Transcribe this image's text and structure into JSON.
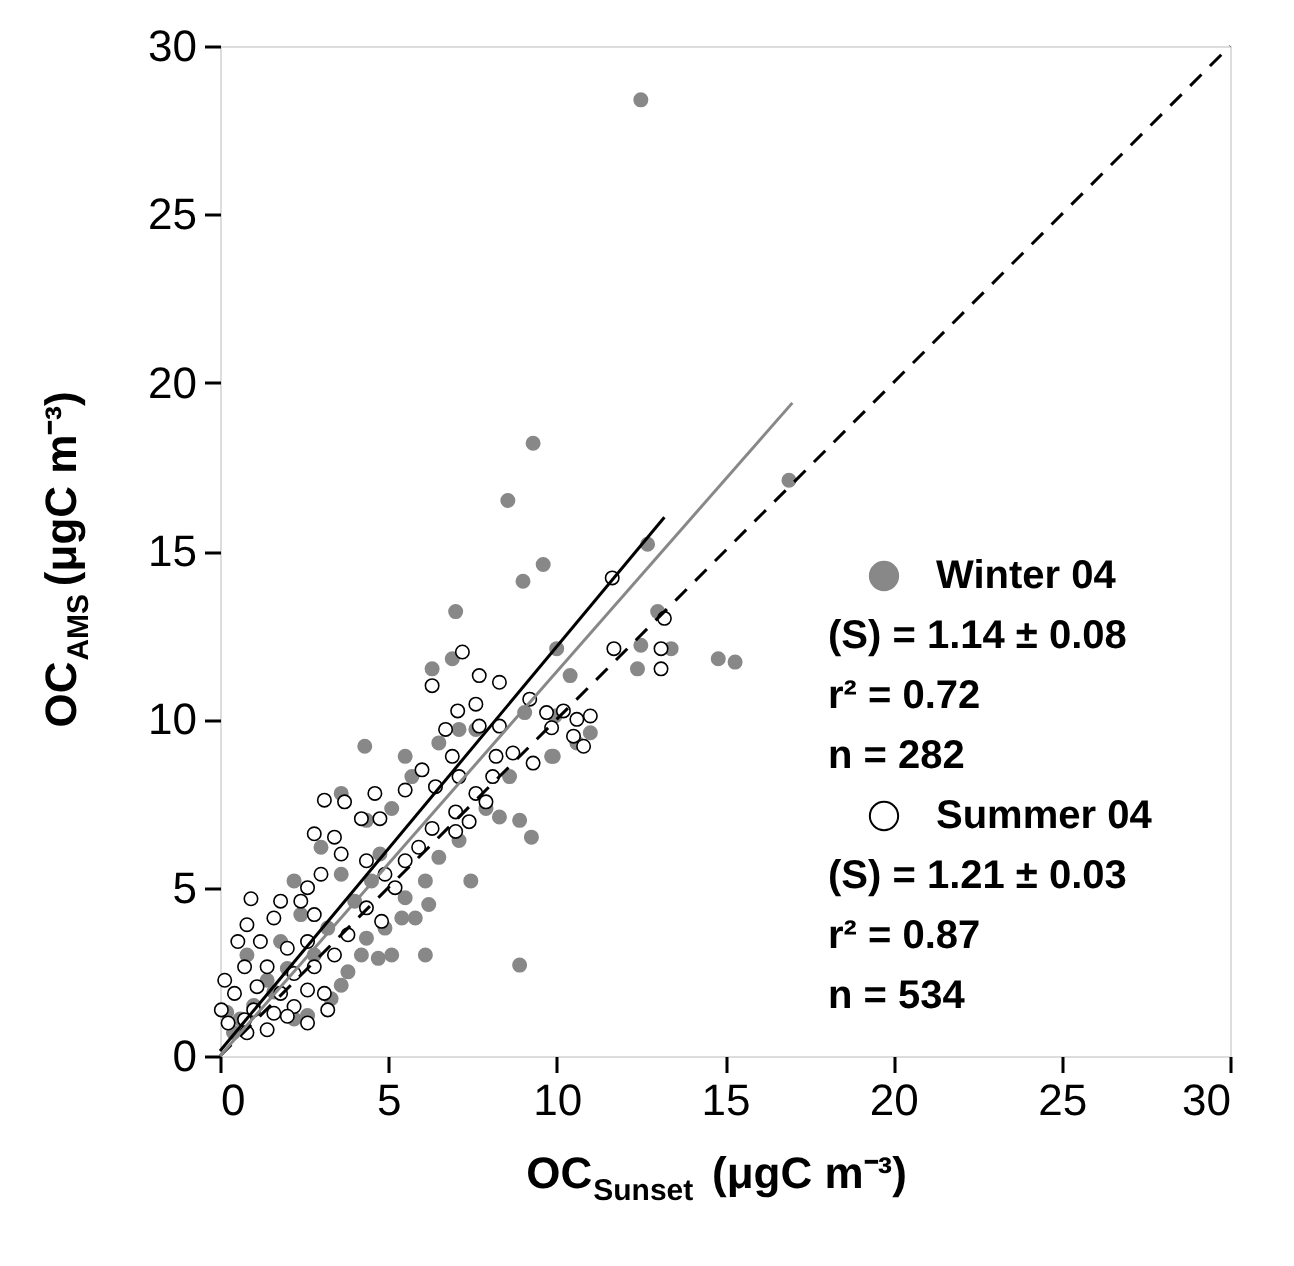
{
  "chart_data": {
    "type": "scatter",
    "xlabel": "OC$_{Sunset}$ (μgC m⁻³)",
    "ylabel": "OC$_{AMS}$ (μgC m⁻³)",
    "xlim": [
      0,
      30
    ],
    "ylim": [
      0,
      30
    ],
    "xticks": [
      0,
      5,
      10,
      15,
      20,
      25,
      30
    ],
    "yticks": [
      0,
      5,
      10,
      15,
      20,
      25,
      30
    ],
    "grid": false,
    "legend": "right",
    "series": [
      {
        "name": "Winter 04",
        "marker": "circle",
        "color": "#888888",
        "x": [
          12.5,
          9.3,
          8.55,
          16.9,
          12.7,
          9.6,
          9.0,
          7.0,
          14.8,
          15.3,
          13.0,
          12.5,
          12.4,
          13.4,
          10.4,
          4.3,
          7.45,
          8.9,
          6.1,
          9.25,
          8.9,
          8.3,
          9.9,
          11.0,
          6.3,
          6.9,
          10.0,
          6.2,
          5.4,
          5.8,
          5.1,
          4.7,
          4.2,
          3.8,
          3.6,
          3.3,
          2.6,
          2.2,
          6.5,
          6.1,
          5.5,
          4.9,
          4.35,
          2.2,
          3.0,
          3.6,
          5.1,
          5.7,
          6.5,
          7.6,
          8.6,
          9.05,
          9.95,
          10.6,
          9.85,
          7.9,
          7.1,
          1.6,
          1.0,
          0.6,
          0.4,
          0.8,
          1.4,
          2.0,
          2.8,
          3.2,
          4.0,
          4.5,
          7.1,
          5.5,
          4.35,
          4.75,
          3.6,
          2.4,
          1.8,
          0.2
        ],
        "values": [
          28.4,
          18.2,
          16.5,
          17.1,
          15.2,
          14.6,
          14.1,
          13.2,
          11.8,
          11.7,
          13.2,
          12.2,
          11.5,
          12.1,
          11.3,
          9.2,
          5.2,
          2.7,
          3.0,
          6.5,
          7.0,
          7.1,
          8.9,
          9.6,
          11.5,
          11.8,
          12.1,
          4.5,
          4.1,
          4.1,
          3.0,
          2.9,
          3.0,
          2.5,
          2.1,
          1.7,
          1.2,
          1.1,
          5.9,
          5.2,
          4.7,
          3.8,
          3.5,
          5.2,
          6.2,
          7.8,
          7.35,
          8.3,
          9.3,
          9.7,
          8.3,
          10.2,
          10.1,
          9.3,
          8.9,
          7.35,
          6.4,
          1.9,
          1.5,
          1.1,
          0.7,
          3.0,
          2.25,
          2.6,
          3.0,
          3.8,
          4.6,
          5.2,
          9.7,
          8.9,
          7.0,
          6.0,
          5.4,
          4.2,
          3.4,
          1.3
        ]
      },
      {
        "name": "Summer 04",
        "marker": "circle",
        "color": "#ffffff",
        "x": [
          11.65,
          13.2,
          11.7,
          13.1,
          13.1,
          7.2,
          6.3,
          7.7,
          8.3,
          7.06,
          7.6,
          9.2,
          9.7,
          10.2,
          11.0,
          10.6,
          9.85,
          10.5,
          10.8,
          9.3,
          8.7,
          8.2,
          8.3,
          7.7,
          6.7,
          6.9,
          6.0,
          5.5,
          6.4,
          7.1,
          7.6,
          7.9,
          8.1,
          7.0,
          7.4,
          7.0,
          6.3,
          5.9,
          5.5,
          5.2,
          4.8,
          4.35,
          3.8,
          3.1,
          3.7,
          4.6,
          4.2,
          4.75,
          2.8,
          3.4,
          3.6,
          4.35,
          4.9,
          3.0,
          2.6,
          0.92,
          1.8,
          2.4,
          2.8,
          1.6,
          0.8,
          0.53,
          1.2,
          2.0,
          2.6,
          3.4,
          2.8,
          2.2,
          1.4,
          0.73,
          0.14,
          0.43,
          1.1,
          1.8,
          2.6,
          3.1,
          3.2,
          2.2,
          1.6,
          1.0,
          0.04,
          0.24,
          0.73,
          1.4,
          0.8,
          2.6,
          2.0
        ],
        "values": [
          14.2,
          13.0,
          12.1,
          12.1,
          11.5,
          12.0,
          11.0,
          11.3,
          11.1,
          10.25,
          10.45,
          10.6,
          10.2,
          10.25,
          10.1,
          10.0,
          9.75,
          9.5,
          9.2,
          8.7,
          9.0,
          8.9,
          9.8,
          9.8,
          9.7,
          8.9,
          8.5,
          7.9,
          8.0,
          8.3,
          7.8,
          7.55,
          8.3,
          7.25,
          6.96,
          6.67,
          6.76,
          6.2,
          5.8,
          5.0,
          4.0,
          4.4,
          3.6,
          7.6,
          7.55,
          7.8,
          7.05,
          7.05,
          6.6,
          6.5,
          6.0,
          5.8,
          5.4,
          5.4,
          5.0,
          4.67,
          4.6,
          4.6,
          4.2,
          4.1,
          3.9,
          3.4,
          3.4,
          3.2,
          3.4,
          3.0,
          2.65,
          2.45,
          2.65,
          2.65,
          2.25,
          1.86,
          2.06,
          1.86,
          1.96,
          1.86,
          1.37,
          1.47,
          1.27,
          1.37,
          1.37,
          0.98,
          1.08,
          0.78,
          0.69,
          0.98,
          1.18
        ]
      },
      {
        "type": "line",
        "marker": "none",
        "color": "#000000",
        "line_style": "dashed",
        "x": [
          0,
          30
        ],
        "values": [
          0,
          30
        ]
      },
      {
        "type": "line",
        "marker": "none",
        "color": "#888888",
        "line_style": "solid",
        "x": [
          0,
          17
        ],
        "values": [
          0,
          19.4
        ]
      },
      {
        "type": "line",
        "marker": "none",
        "color": "#000000",
        "line_style": "solid",
        "x": [
          0,
          13.2
        ],
        "values": [
          0.15,
          16.0
        ]
      }
    ],
    "annotations": [
      "(S) = 1.14 ± 0.08",
      "r² = 0.72",
      "n = 282",
      "(S) = 1.21 ± 0.03",
      "r² = 0.87",
      "n = 534"
    ]
  }
}
